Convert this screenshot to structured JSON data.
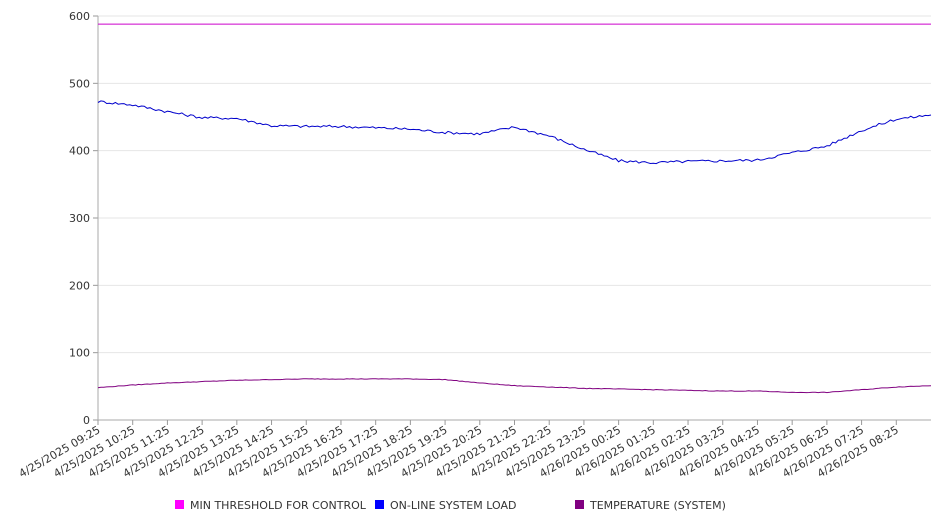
{
  "chart_data": {
    "type": "line",
    "title": "",
    "xlabel": "",
    "ylabel": "",
    "ylim": [
      0,
      600
    ],
    "yticks": [
      0,
      100,
      200,
      300,
      400,
      500,
      600
    ],
    "grid": true,
    "legend_position": "bottom",
    "x_tick_labels": [
      "4/25/2025 09:25",
      "4/25/2025 10:25",
      "4/25/2025 11:25",
      "4/25/2025 12:25",
      "4/25/2025 13:25",
      "4/25/2025 14:25",
      "4/25/2025 15:25",
      "4/25/2025 16:25",
      "4/25/2025 17:25",
      "4/25/2025 18:25",
      "4/25/2025 19:25",
      "4/25/2025 20:25",
      "4/25/2025 21:25",
      "4/25/2025 22:25",
      "4/25/2025 23:25",
      "4/26/2025 00:25",
      "4/26/2025 01:25",
      "4/26/2025 02:25",
      "4/26/2025 03:25",
      "4/26/2025 04:25",
      "4/26/2025 05:25",
      "4/26/2025 06:25",
      "4/26/2025 07:25",
      "4/26/2025 08:25"
    ],
    "x": [
      "4/25/2025 09:25",
      "4/25/2025 10:25",
      "4/25/2025 11:25",
      "4/25/2025 12:25",
      "4/25/2025 13:25",
      "4/25/2025 14:25",
      "4/25/2025 15:25",
      "4/25/2025 16:25",
      "4/25/2025 17:25",
      "4/25/2025 18:25",
      "4/25/2025 19:25",
      "4/25/2025 20:25",
      "4/25/2025 21:25",
      "4/25/2025 22:25",
      "4/25/2025 23:25",
      "4/26/2025 00:25",
      "4/26/2025 01:25",
      "4/26/2025 02:25",
      "4/26/2025 03:25",
      "4/26/2025 04:25",
      "4/26/2025 05:25",
      "4/26/2025 06:25",
      "4/26/2025 07:25",
      "4/26/2025 08:25",
      "4/26/2025 09:25"
    ],
    "series": [
      {
        "name": "MIN THRESHOLD FOR CONTROL",
        "color": "#cc00cc",
        "legend_color": "#ff00ff",
        "values": [
          588,
          588,
          588,
          588,
          588,
          588,
          588,
          588,
          588,
          588,
          588,
          588,
          588,
          588,
          588,
          588,
          588,
          588,
          588,
          588,
          588,
          588,
          588,
          588,
          588
        ]
      },
      {
        "name": "ON-LINE SYSTEM LOAD",
        "color": "#0000cc",
        "legend_color": "#0000ff",
        "values": [
          473,
          468,
          458,
          449,
          448,
          437,
          436,
          436,
          434,
          432,
          427,
          425,
          435,
          422,
          402,
          385,
          382,
          384,
          385,
          386,
          397,
          407,
          430,
          447,
          453
        ]
      },
      {
        "name": "TEMPERATURE (SYSTEM)",
        "color": "#800080",
        "legend_color": "#800080",
        "values": [
          48,
          52,
          55,
          57,
          59,
          60,
          61,
          61,
          61,
          61,
          60,
          55,
          51,
          49,
          47,
          46,
          45,
          44,
          43,
          43,
          41,
          41,
          45,
          49,
          51
        ]
      }
    ]
  }
}
